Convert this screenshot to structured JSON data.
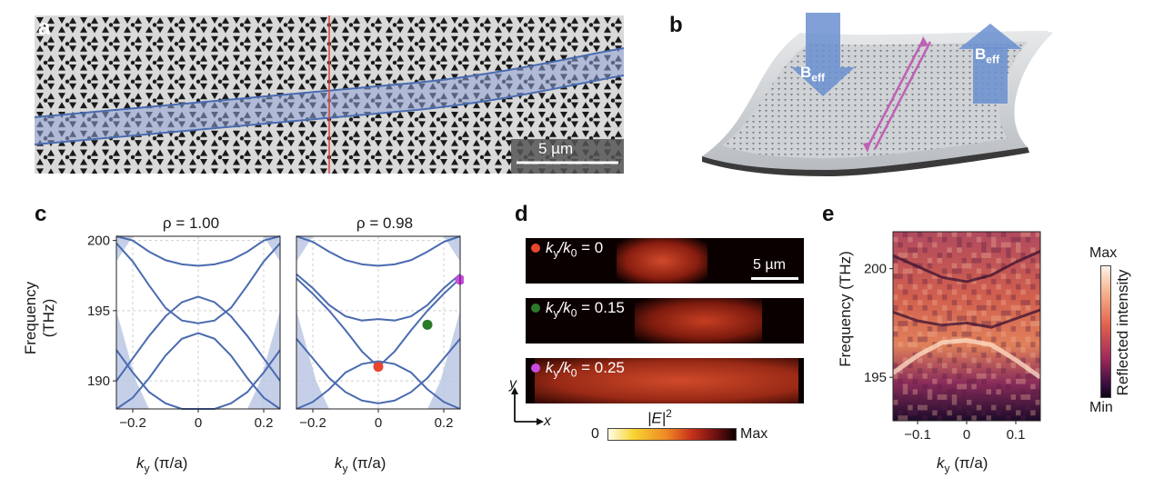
{
  "figure": {
    "panels": {
      "a": {
        "letter": "a",
        "scale_bar": "5 µm"
      },
      "b": {
        "letter": "b",
        "field_label_main": "B",
        "field_label_sub": "eff"
      },
      "c": {
        "letter": "c",
        "ylabel": "Frequency (THz)",
        "xlabel_main": "k",
        "xlabel_sub": "y",
        "xlabel_unit": " (π/a)",
        "left_title": "ρ = 1.00",
        "right_title": "ρ = 0.98",
        "yticks": [
          "190",
          "195",
          "200"
        ],
        "xticks": [
          "−0.2",
          "0",
          "0.2"
        ]
      },
      "d": {
        "letter": "d",
        "rows": [
          {
            "label_k": "k",
            "label_sub": "y",
            "label_rest": "/k",
            "label_sub2": "0",
            "label_value": " = 0",
            "marker_color": "#e8462e"
          },
          {
            "label_k": "k",
            "label_sub": "y",
            "label_rest": "/k",
            "label_sub2": "0",
            "label_value": " = 0.15",
            "marker_color": "#2a7a2a"
          },
          {
            "label_k": "k",
            "label_sub": "y",
            "label_rest": "/k",
            "label_sub2": "0",
            "label_value": " = 0.25",
            "marker_color": "#c94bdf"
          }
        ],
        "scale_bar": "5 µm",
        "axis_y": "y",
        "axis_x": "x",
        "colorbar_title": "|E|",
        "colorbar_exp": "2",
        "colorbar_min": "0",
        "colorbar_max": "Max"
      },
      "e": {
        "letter": "e",
        "ylabel": "Frequency (THz)",
        "xlabel_main": "k",
        "xlabel_sub": "y",
        "xlabel_unit": " (π/a)",
        "yticks": [
          "195",
          "200"
        ],
        "xticks": [
          "−0.1",
          "0",
          "0.1"
        ],
        "colorbar_title": "Reflected intensity",
        "colorbar_max": "Max",
        "colorbar_min": "Min"
      }
    },
    "colors": {
      "band": "#4a6bb0",
      "band_fill": "#b7c4e2",
      "marker_red": "#e8462e",
      "marker_green": "#2a7a2a",
      "marker_magenta": "#c94bdf"
    }
  },
  "chart_data": [
    {
      "type": "line",
      "panel": "c-left",
      "title": "ρ = 1.00",
      "xlabel": "k_y (π/a)",
      "ylabel": "Frequency (THz)",
      "xlim": [
        -0.25,
        0.25
      ],
      "ylim": [
        188,
        200.3
      ],
      "x": [
        -0.25,
        -0.2,
        -0.15,
        -0.1,
        -0.05,
        0,
        0.05,
        0.1,
        0.15,
        0.2,
        0.25
      ],
      "series": [
        {
          "values": [
            190.0,
            191.6,
            193.2,
            194.6,
            195.6,
            196.0,
            195.6,
            194.6,
            193.2,
            191.6,
            190.0
          ]
        },
        {
          "values": [
            199.8,
            198.5,
            196.8,
            195.2,
            194.3,
            194.1,
            194.3,
            195.2,
            196.8,
            198.5,
            199.8
          ]
        },
        {
          "values": [
            188.0,
            188.8,
            190.2,
            191.8,
            193.0,
            193.4,
            193.0,
            191.8,
            190.2,
            188.8,
            188.0
          ]
        },
        {
          "values": [
            192.2,
            190.6,
            189.2,
            188.4,
            188.0,
            188.0,
            188.0,
            188.4,
            189.2,
            190.6,
            192.2
          ]
        },
        {
          "values": [
            200.3,
            200.0,
            199.2,
            198.6,
            198.3,
            198.2,
            198.3,
            198.6,
            199.2,
            200.0,
            200.3
          ]
        }
      ]
    },
    {
      "type": "line",
      "panel": "c-right",
      "title": "ρ = 0.98",
      "xlabel": "k_y (π/a)",
      "xlim": [
        -0.25,
        0.25
      ],
      "ylim": [
        188,
        200.3
      ],
      "x": [
        -0.25,
        -0.2,
        -0.15,
        -0.1,
        -0.05,
        0,
        0.05,
        0.1,
        0.15,
        0.2,
        0.25
      ],
      "series": [
        {
          "values": [
            197.3,
            196.2,
            195.0,
            193.6,
            192.1,
            191.0,
            192.1,
            193.6,
            195.0,
            196.2,
            197.3
          ]
        },
        {
          "values": [
            197.6,
            196.6,
            195.4,
            194.6,
            194.3,
            194.4,
            194.3,
            194.6,
            195.4,
            196.6,
            197.6
          ]
        },
        {
          "values": [
            188.0,
            188.5,
            189.4,
            190.6,
            191.2,
            191.4,
            191.2,
            190.6,
            189.4,
            188.5,
            188.0
          ]
        },
        {
          "values": [
            193.0,
            191.6,
            190.2,
            189.2,
            188.6,
            188.4,
            188.6,
            189.2,
            190.2,
            191.6,
            193.0
          ]
        },
        {
          "values": [
            200.3,
            199.9,
            199.2,
            198.6,
            198.3,
            198.2,
            198.3,
            198.6,
            199.2,
            199.9,
            200.3
          ]
        }
      ],
      "markers": [
        {
          "x": 0,
          "y": 191.0,
          "color": "#e8462e"
        },
        {
          "x": 0.15,
          "y": 194.0,
          "color": "#2a7a2a"
        },
        {
          "x": 0.25,
          "y": 197.2,
          "color": "#c94bdf"
        }
      ]
    },
    {
      "type": "heatmap",
      "panel": "e",
      "xlabel": "k_y (π/a)",
      "ylabel": "Frequency (THz)",
      "xlim": [
        -0.15,
        0.15
      ],
      "ylim": [
        193.0,
        201.7
      ],
      "bands": [
        {
          "x": [
            -0.15,
            -0.1,
            -0.05,
            0,
            0.05,
            0.1,
            0.15
          ],
          "y": [
            200.6,
            200.1,
            199.6,
            199.4,
            199.7,
            200.3,
            200.8
          ]
        },
        {
          "x": [
            -0.15,
            -0.1,
            -0.05,
            0,
            0.05,
            0.1,
            0.15
          ],
          "y": [
            198.0,
            197.6,
            197.4,
            197.5,
            197.3,
            197.7,
            198.1
          ]
        },
        {
          "x": [
            -0.15,
            -0.1,
            -0.05,
            0,
            0.05,
            0.1,
            0.15
          ],
          "y": [
            195.2,
            196.0,
            196.6,
            196.7,
            196.5,
            195.8,
            195.0
          ]
        }
      ]
    }
  ]
}
